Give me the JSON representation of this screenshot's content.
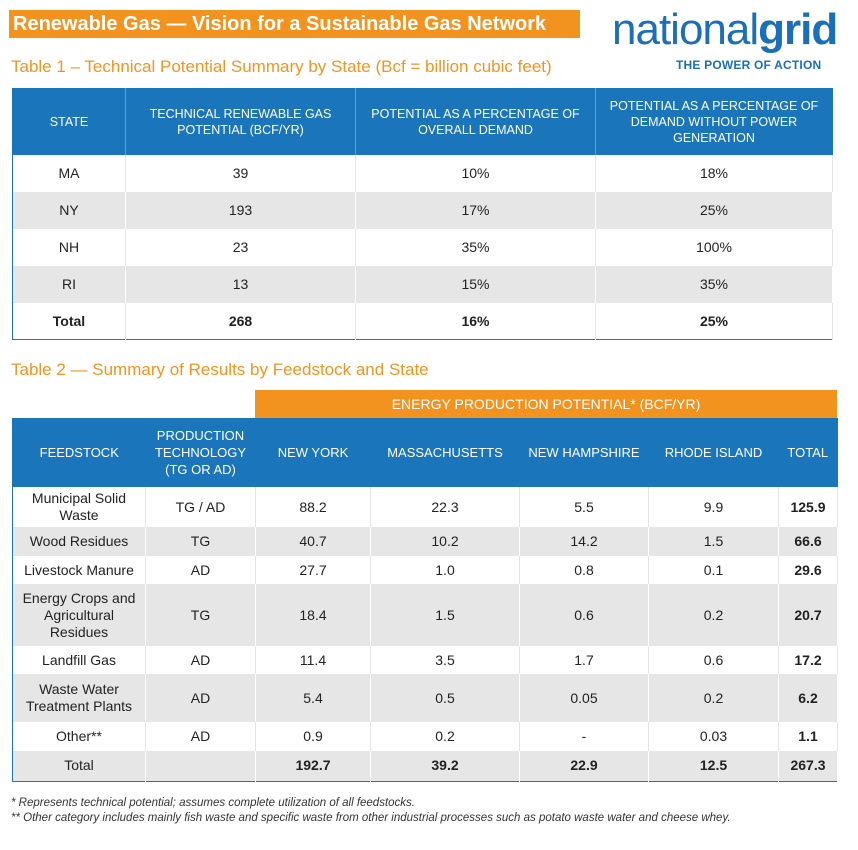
{
  "header": {
    "title": "Renewable Gas — Vision for a Sustainable Gas Network",
    "logo_part1": "national",
    "logo_part2": "grid",
    "tagline": "THE POWER OF ACTION"
  },
  "table1": {
    "caption": "Table 1 – Technical Potential Summary by State (Bcf = billion cubic feet)",
    "headers": [
      "STATE",
      "TECHNICAL RENEWABLE GAS POTENTIAL (BCF/YR)",
      "POTENTIAL AS A PERCENTAGE OF OVERALL DEMAND",
      "POTENTIAL AS A PERCENTAGE OF DEMAND WITHOUT POWER GENERATION"
    ],
    "rows": [
      [
        "MA",
        "39",
        "10%",
        "18%"
      ],
      [
        "NY",
        "193",
        "17%",
        "25%"
      ],
      [
        "NH",
        "23",
        "35%",
        "100%"
      ],
      [
        "RI",
        "13",
        "15%",
        "35%"
      ],
      [
        "Total",
        "268",
        "16%",
        "25%"
      ]
    ]
  },
  "table2": {
    "caption": "Table 2 — Summary of Results by Feedstock and State",
    "band": "ENERGY PRODUCTION POTENTIAL* (BCF/YR)",
    "headers": [
      "FEEDSTOCK",
      "PRODUCTION TECHNOLOGY (TG OR AD)",
      "NEW YORK",
      "MASSACHUSETTS",
      "NEW HAMPSHIRE",
      "RHODE ISLAND",
      "TOTAL"
    ],
    "rows": [
      [
        "Municipal Solid Waste",
        "TG / AD",
        "88.2",
        "22.3",
        "5.5",
        "9.9",
        "125.9"
      ],
      [
        "Wood Residues",
        "TG",
        "40.7",
        "10.2",
        "14.2",
        "1.5",
        "66.6"
      ],
      [
        "Livestock Manure",
        "AD",
        "27.7",
        "1.0",
        "0.8",
        "0.1",
        "29.6"
      ],
      [
        "Energy Crops and Agricultural Residues",
        "TG",
        "18.4",
        "1.5",
        "0.6",
        "0.2",
        "20.7"
      ],
      [
        "Landfill Gas",
        "AD",
        "11.4",
        "3.5",
        "1.7",
        "0.6",
        "17.2"
      ],
      [
        "Waste Water Treatment Plants",
        "AD",
        "5.4",
        "0.5",
        "0.05",
        "0.2",
        "6.2"
      ],
      [
        "Other**",
        "AD",
        "0.9",
        "0.2",
        "-",
        "0.03",
        "1.1"
      ],
      [
        "Total",
        "",
        "192.7",
        "39.2",
        "22.9",
        "12.5",
        "267.3"
      ]
    ]
  },
  "footnotes": {
    "fn1": "* Represents technical potential; assumes complete utilization of all feedstocks.",
    "fn2": "** Other category includes mainly fish waste and specific waste from other industrial processes such as potato waste water and cheese whey."
  },
  "colors": {
    "accent_orange": "#f3931f",
    "table_blue": "#1b75bb",
    "row_gray": "#e6e6e6"
  }
}
